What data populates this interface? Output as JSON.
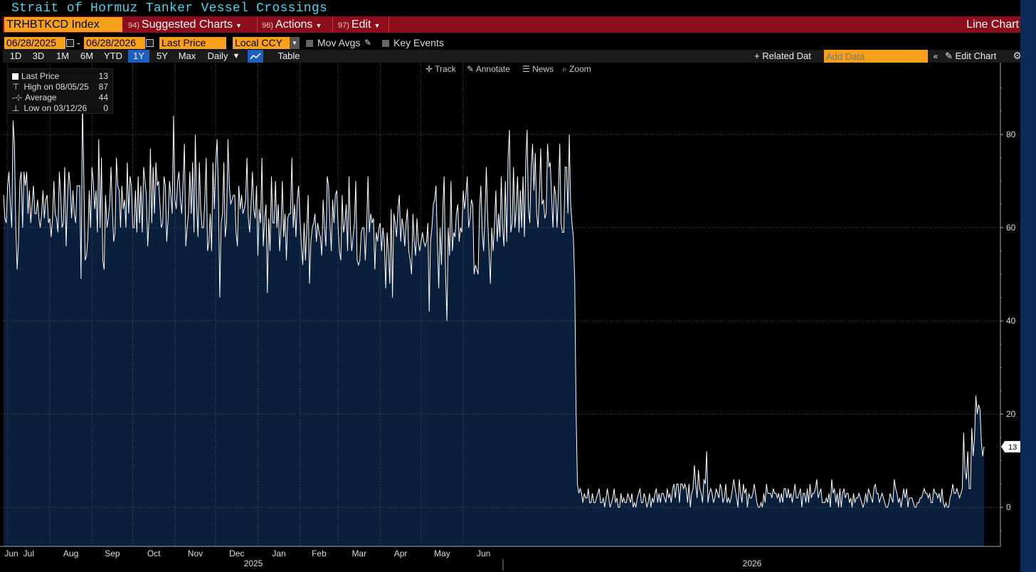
{
  "title": "Strait of Hormuz Tanker Vessel Crossings",
  "toolbar": {
    "ticker": "TRHBTKCD Index",
    "menus": [
      {
        "num": "94)",
        "label": "Suggested Charts"
      },
      {
        "num": "96)",
        "label": "Actions"
      },
      {
        "num": "97)",
        "label": "Edit"
      }
    ],
    "chart_type_label": "Line Chart"
  },
  "controls": {
    "start_date": "06/28/2025",
    "end_date": "06/28/2026",
    "field": "Last Price",
    "currency": "Local CCY",
    "mov_avgs": "Mov Avgs",
    "key_events": "Key Events",
    "ranges": [
      "1D",
      "3D",
      "1M",
      "6M",
      "YTD",
      "1Y",
      "5Y",
      "Max"
    ],
    "selected_range": "1Y",
    "frequency": "Daily",
    "table": "Table",
    "related_data": "+ Related Dat",
    "add_data_placeholder": "Add Data",
    "edit_chart": "Edit Chart"
  },
  "tools": {
    "track": "Track",
    "annotate": "Annotate",
    "news": "News",
    "zoom": "Zoom"
  },
  "legend": {
    "rows": [
      {
        "label": "Last Price",
        "value": "13"
      },
      {
        "label": "High on 08/05/25",
        "value": "87"
      },
      {
        "label": "Average",
        "value": "44"
      },
      {
        "label": "Low on 03/12/26",
        "value": "0"
      }
    ]
  },
  "colors": {
    "accent": "#f7a01c",
    "menu_bar": "#8b0e1a",
    "area_fill": "#0a1f3b",
    "line": "#ffffff",
    "title": "#46d6e8",
    "selected": "#1f5fbf"
  },
  "chart_data": {
    "type": "area",
    "title": "Strait of Hormuz Tanker Vessel Crossings",
    "ylim": [
      -8,
      92
    ],
    "yticks": [
      0,
      20,
      40,
      60,
      80
    ],
    "last_value_label": "13",
    "x_month_labels": [
      "Jun",
      "Jul",
      "Aug",
      "Sep",
      "Oct",
      "Nov",
      "Dec",
      "Jan",
      "Feb",
      "Mar",
      "Apr",
      "May",
      "Jun"
    ],
    "x_year_labels": [
      "2025",
      "2026"
    ],
    "grid": true,
    "start_date": "2025-06-28",
    "values": [
      67,
      62,
      61,
      69,
      72,
      65,
      60,
      83,
      78,
      60,
      51,
      57,
      70,
      72,
      60,
      72,
      69,
      72,
      63,
      68,
      61,
      65,
      69,
      63,
      63,
      66,
      62,
      60,
      63,
      68,
      62,
      66,
      67,
      61,
      62,
      58,
      62,
      70,
      63,
      62,
      59,
      72,
      67,
      60,
      61,
      73,
      56,
      66,
      72,
      69,
      62,
      68,
      63,
      61,
      69,
      69,
      69,
      49,
      87,
      71,
      53,
      54,
      58,
      68,
      60,
      73,
      70,
      64,
      68,
      59,
      79,
      60,
      75,
      53,
      51,
      67,
      60,
      62,
      65,
      73,
      64,
      57,
      59,
      75,
      69,
      68,
      60,
      69,
      64,
      66,
      60,
      74,
      63,
      71,
      69,
      60,
      60,
      68,
      59,
      71,
      61,
      69,
      59,
      73,
      70,
      67,
      56,
      62,
      77,
      61,
      73,
      63,
      74,
      69,
      70,
      65,
      60,
      61,
      71,
      69,
      57,
      62,
      70,
      67,
      63,
      84,
      66,
      64,
      70,
      72,
      66,
      63,
      70,
      78,
      56,
      60,
      63,
      72,
      63,
      74,
      59,
      80,
      65,
      58,
      74,
      64,
      60,
      60,
      66,
      75,
      55,
      57,
      63,
      55,
      74,
      64,
      74,
      79,
      67,
      45,
      61,
      63,
      74,
      58,
      61,
      79,
      69,
      65,
      66,
      67,
      67,
      59,
      56,
      69,
      64,
      67,
      63,
      64,
      66,
      75,
      62,
      59,
      65,
      72,
      64,
      62,
      69,
      54,
      64,
      61,
      75,
      56,
      62,
      65,
      46,
      62,
      55,
      71,
      61,
      61,
      70,
      60,
      65,
      55,
      60,
      70,
      58,
      63,
      53,
      62,
      63,
      63,
      75,
      60,
      65,
      58,
      66,
      69,
      62,
      56,
      52,
      61,
      53,
      60,
      67,
      48,
      57,
      60,
      61,
      63,
      57,
      61,
      59,
      58,
      54,
      66,
      60,
      56,
      71,
      69,
      61,
      55,
      66,
      61,
      67,
      68,
      60,
      55,
      53,
      67,
      59,
      61,
      65,
      55,
      71,
      60,
      55,
      58,
      61,
      70,
      53,
      52,
      53,
      59,
      60,
      60,
      53,
      60,
      71,
      59,
      63,
      61,
      62,
      51,
      59,
      57,
      60,
      61,
      55,
      60,
      57,
      47,
      59,
      55,
      48,
      64,
      45,
      63,
      61,
      58,
      64,
      67,
      57,
      62,
      60,
      56,
      61,
      64,
      55,
      53,
      50,
      63,
      57,
      54,
      62,
      57,
      55,
      57,
      59,
      57,
      56,
      57,
      61,
      42,
      57,
      60,
      65,
      66,
      69,
      57,
      47,
      60,
      52,
      64,
      71,
      50,
      40,
      60,
      54,
      70,
      55,
      59,
      58,
      63,
      65,
      57,
      60,
      59,
      68,
      64,
      67,
      71,
      60,
      62,
      66,
      65,
      50,
      52,
      51,
      50,
      64,
      69,
      59,
      55,
      63,
      73,
      62,
      55,
      48,
      60,
      55,
      61,
      68,
      57,
      63,
      58,
      71,
      60,
      56,
      70,
      57,
      75,
      81,
      59,
      61,
      73,
      60,
      64,
      71,
      59,
      68,
      60,
      71,
      58,
      74,
      81,
      64,
      61,
      73,
      78,
      68,
      76,
      63,
      60,
      67,
      77,
      65,
      66,
      62,
      63,
      78,
      73,
      74,
      67,
      60,
      69,
      67,
      60,
      68,
      78,
      61,
      59,
      59,
      73,
      73,
      63,
      80,
      65,
      61,
      58,
      49,
      21,
      5,
      3,
      4,
      3,
      1,
      3,
      2,
      2,
      4,
      1,
      1,
      3,
      1,
      1,
      2,
      3,
      4,
      1,
      1,
      2,
      0,
      2,
      4,
      2,
      0,
      1,
      2,
      4,
      1,
      2,
      0,
      0,
      3,
      1,
      2,
      1,
      1,
      3,
      2,
      1,
      3,
      0,
      1,
      0,
      2,
      3,
      4,
      1,
      1,
      3,
      2,
      0,
      1,
      3,
      0,
      2,
      1,
      3,
      4,
      1,
      3,
      1,
      3,
      3,
      2,
      1,
      4,
      2,
      3,
      1,
      4,
      5,
      2,
      5,
      5,
      1,
      5,
      5,
      4,
      5,
      4,
      1,
      5,
      0,
      3,
      4,
      9,
      5,
      2,
      8,
      4,
      3,
      1,
      6,
      5,
      12,
      1,
      3,
      4,
      3,
      1,
      2,
      4,
      3,
      2,
      5,
      4,
      1,
      2,
      5,
      1,
      2,
      1,
      2,
      4,
      6,
      4,
      2,
      0,
      6,
      3,
      1,
      5,
      3,
      4,
      0,
      3,
      2,
      2,
      3,
      5,
      3,
      1,
      0,
      0,
      1,
      0,
      3,
      1,
      5,
      3,
      3,
      3,
      2,
      4,
      3,
      3,
      2,
      3,
      1,
      3,
      1,
      4,
      4,
      2,
      4,
      2,
      3,
      1,
      3,
      5,
      2,
      2,
      3,
      4,
      0,
      3,
      3,
      1,
      4,
      1,
      5,
      2,
      3,
      3,
      4,
      6,
      2,
      3,
      4,
      1,
      1,
      1,
      2,
      1,
      3,
      0,
      6,
      3,
      4,
      1,
      3,
      0,
      4,
      0,
      3,
      4,
      2,
      3,
      3,
      1,
      2,
      0,
      3,
      1,
      2,
      2,
      3,
      2,
      1,
      0,
      1,
      3,
      1,
      4,
      3,
      2,
      1,
      4,
      5,
      3,
      3,
      1,
      2,
      3,
      2,
      1,
      0,
      0,
      1,
      3,
      2,
      1,
      6,
      4,
      3,
      1,
      2,
      0,
      2,
      4,
      2,
      4,
      0,
      2,
      2,
      2,
      1,
      0,
      0,
      1,
      1,
      2,
      2,
      3,
      4,
      3,
      3,
      2,
      3,
      1,
      1,
      4,
      3,
      3,
      2,
      3,
      1,
      4,
      1,
      0,
      1,
      0,
      0,
      2,
      3,
      5,
      3,
      3,
      4,
      3,
      2,
      3,
      4,
      16,
      8,
      6,
      12,
      4,
      4,
      17,
      11,
      15,
      24,
      20,
      22,
      21,
      14,
      11,
      13
    ]
  }
}
